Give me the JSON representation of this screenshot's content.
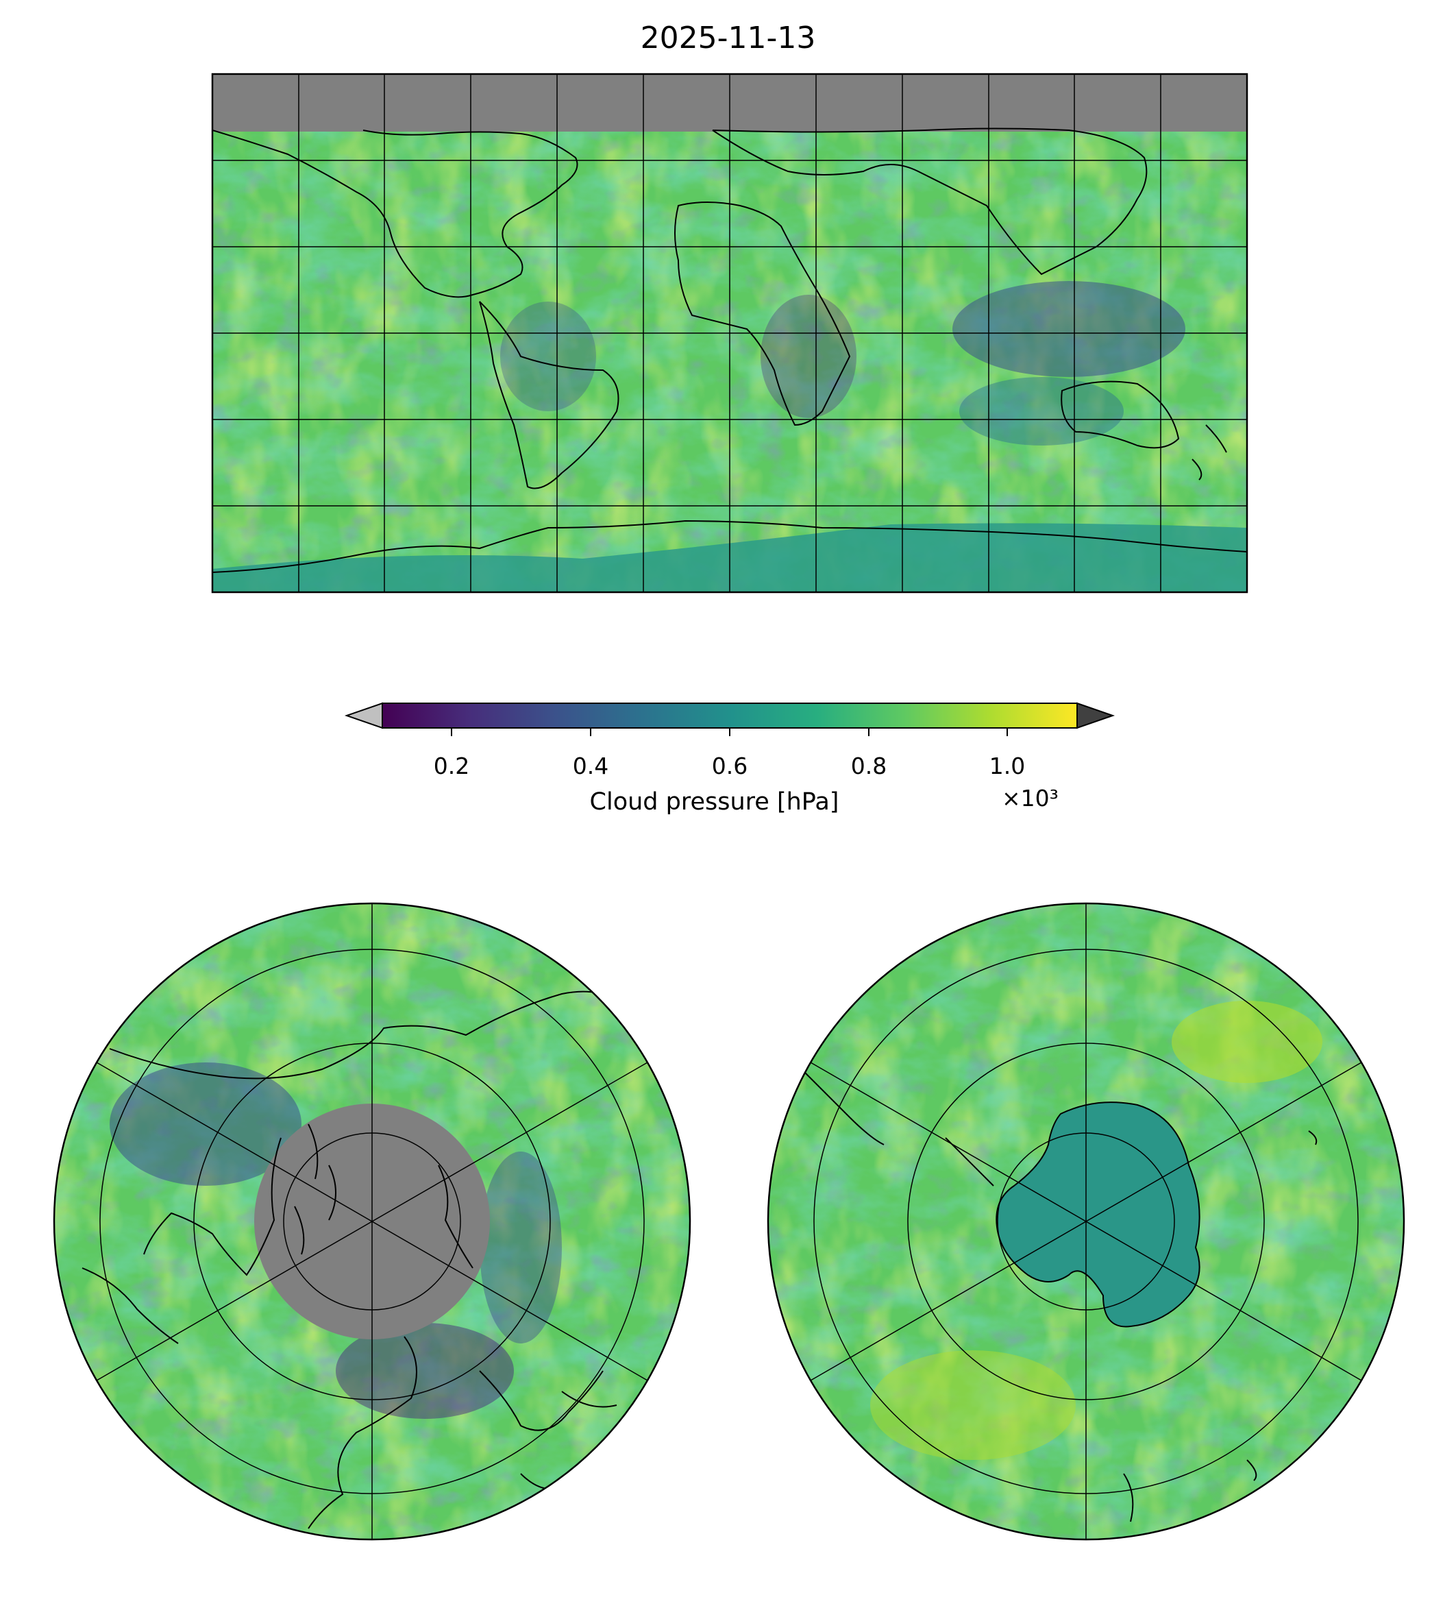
{
  "title": "2025-11-13",
  "colorbar": {
    "label": "Cloud pressure [hPa]",
    "multiplier": "×10³",
    "ticks": [
      "0.2",
      "0.4",
      "0.6",
      "0.8",
      "1.0"
    ],
    "tick_values": [
      0.2,
      0.4,
      0.6,
      0.8,
      1.0
    ],
    "range": [
      0.1,
      1.1
    ],
    "colormap": "viridis",
    "extend_low_color": "#c0c0c0",
    "extend_high_color": "#404040"
  },
  "maps": {
    "global": {
      "projection": "plate-carree",
      "no_data_color": "#808080"
    },
    "north_polar": {
      "projection": "north-polar-stereographic",
      "no_data_color": "#808080"
    },
    "south_polar": {
      "projection": "south-polar-stereographic"
    }
  },
  "colors": {
    "viridis": [
      "#440154",
      "#472d7b",
      "#3b528b",
      "#2c728e",
      "#21918c",
      "#28ae80",
      "#5ec962",
      "#addc30",
      "#fde725"
    ],
    "nodata": "#808080",
    "coast": "#000000"
  }
}
